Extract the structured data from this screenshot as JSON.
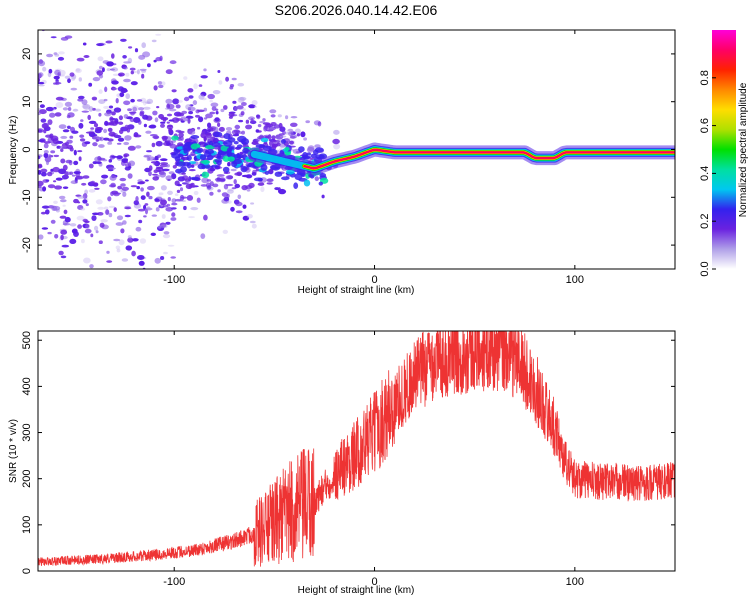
{
  "title": "S206.2026.040.14.42.E06",
  "chart_data": [
    {
      "type": "heatmap",
      "name": "spectrogram",
      "xlabel": "Height of straight line (km)",
      "ylabel": "Frequency (Hz)",
      "xlim": [
        -168,
        150
      ],
      "ylim": [
        -25,
        25
      ],
      "xticks": [
        -100,
        0,
        100
      ],
      "yticks": [
        -20,
        -10,
        0,
        10,
        20
      ],
      "colorbar": {
        "label": "Normalized spectral amplitude",
        "range": [
          0,
          1
        ],
        "ticks": [
          "0.0",
          "0.2",
          "0.4",
          "0.6",
          "0.8"
        ],
        "colormap": [
          "#ffffff",
          "#b0a0e8",
          "#6a22e0",
          "#3322ee",
          "#00c8f0",
          "#00e0a0",
          "#00e000",
          "#b0e000",
          "#ffdd00",
          "#ff8800",
          "#ff2200",
          "#ff0066",
          "#ff00d8"
        ]
      },
      "ridge": {
        "x": [
          -100,
          -60,
          -50,
          -40,
          -30,
          -20,
          -10,
          0,
          10,
          20,
          40,
          60,
          75,
          80,
          90,
          95,
          100,
          110,
          130,
          150
        ],
        "freq": [
          -1.5,
          -1,
          -2,
          -3,
          -4,
          -2.5,
          -1.5,
          0,
          -0.6,
          -0.6,
          -0.6,
          -0.6,
          -0.6,
          -1.8,
          -1.8,
          -0.6,
          -0.6,
          -0.6,
          -0.6,
          -0.6
        ]
      }
    },
    {
      "type": "line",
      "name": "snr",
      "xlabel": "Height of straight line (km)",
      "ylabel": "SNR (10 * v/v)",
      "xlim": [
        -168,
        150
      ],
      "ylim": [
        0,
        520
      ],
      "xticks": [
        -100,
        0,
        100
      ],
      "yticks": [
        0,
        100,
        200,
        300,
        400,
        500
      ],
      "color": "#ee3333",
      "envelope": {
        "x": [
          -168,
          -140,
          -110,
          -90,
          -70,
          -55,
          -45,
          -35,
          -30,
          -20,
          -10,
          0,
          10,
          20,
          30,
          40,
          50,
          60,
          70,
          80,
          90,
          95,
          100,
          110,
          120,
          130,
          150
        ],
        "y": [
          20,
          25,
          35,
          45,
          65,
          90,
          120,
          140,
          150,
          210,
          250,
          300,
          360,
          420,
          460,
          470,
          480,
          480,
          465,
          400,
          310,
          240,
          200,
          195,
          195,
          190,
          195
        ]
      }
    }
  ]
}
